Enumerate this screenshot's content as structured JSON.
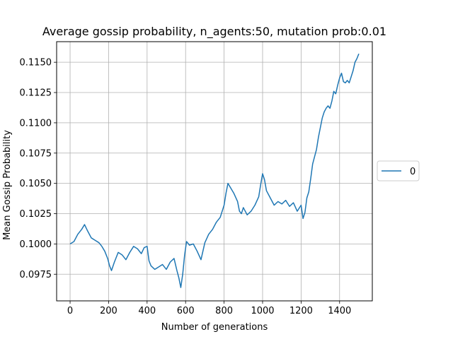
{
  "chart_data": {
    "type": "line",
    "title": "Average gossip probability, n_agents:50, mutation prob:0.01",
    "xlabel": "Number of generations",
    "ylabel": "Mean Gossip Probability",
    "xlim": [
      -70,
      1570
    ],
    "ylim": [
      0.0953,
      0.1167
    ],
    "xticks": [
      0,
      200,
      400,
      600,
      800,
      1000,
      1200,
      1400
    ],
    "xtick_labels": [
      "0",
      "200",
      "400",
      "600",
      "800",
      "1000",
      "1200",
      "1400"
    ],
    "yticks": [
      0.0975,
      0.1,
      0.1025,
      0.105,
      0.1075,
      0.11,
      0.1125,
      0.115
    ],
    "ytick_labels": [
      "0.0975",
      "0.1000",
      "0.1025",
      "0.1050",
      "0.1075",
      "0.1100",
      "0.1125",
      "0.1150"
    ],
    "grid": true,
    "legend_placement": "center-right, outside plot",
    "series": [
      {
        "name": "0",
        "color": "#1f77b4",
        "x": [
          0,
          20,
          40,
          60,
          75,
          90,
          110,
          130,
          150,
          165,
          180,
          195,
          205,
          215,
          230,
          250,
          270,
          290,
          310,
          330,
          350,
          370,
          385,
          400,
          410,
          420,
          440,
          460,
          480,
          500,
          520,
          540,
          555,
          565,
          575,
          585,
          595,
          605,
          620,
          640,
          660,
          680,
          700,
          720,
          740,
          760,
          780,
          800,
          810,
          820,
          835,
          850,
          870,
          880,
          890,
          900,
          920,
          940,
          960,
          980,
          990,
          1000,
          1010,
          1020,
          1040,
          1060,
          1080,
          1100,
          1120,
          1140,
          1160,
          1180,
          1200,
          1210,
          1220,
          1230,
          1240,
          1250,
          1260,
          1270,
          1280,
          1290,
          1300,
          1310,
          1320,
          1330,
          1340,
          1350,
          1360,
          1370,
          1380,
          1390,
          1400,
          1410,
          1420,
          1430,
          1440,
          1450,
          1460,
          1470,
          1480,
          1490,
          1500
        ],
        "y": [
          0.1,
          0.1002,
          0.1008,
          0.1012,
          0.1016,
          0.1011,
          0.1005,
          0.1003,
          0.1001,
          0.0998,
          0.0994,
          0.0988,
          0.0982,
          0.0978,
          0.0985,
          0.0993,
          0.0991,
          0.0987,
          0.0993,
          0.0998,
          0.0996,
          0.0992,
          0.0997,
          0.0998,
          0.0986,
          0.0982,
          0.0979,
          0.0981,
          0.0983,
          0.0979,
          0.0985,
          0.0988,
          0.0978,
          0.0972,
          0.0964,
          0.0975,
          0.0991,
          0.1002,
          0.0999,
          0.1,
          0.0994,
          0.0987,
          0.1001,
          0.1008,
          0.1012,
          0.1018,
          0.1022,
          0.1032,
          0.1042,
          0.105,
          0.1046,
          0.1042,
          0.1035,
          0.1027,
          0.1025,
          0.103,
          0.1024,
          0.1027,
          0.1032,
          0.1039,
          0.1049,
          0.1058,
          0.1053,
          0.1044,
          0.1038,
          0.1032,
          0.1035,
          0.1033,
          0.1036,
          0.1031,
          0.1034,
          0.1027,
          0.1032,
          0.1021,
          0.1026,
          0.1038,
          0.1043,
          0.1054,
          0.1066,
          0.1072,
          0.1078,
          0.1088,
          0.1096,
          0.1104,
          0.1109,
          0.1112,
          0.1114,
          0.1112,
          0.1118,
          0.1126,
          0.1124,
          0.1131,
          0.1137,
          0.1141,
          0.1134,
          0.1133,
          0.1135,
          0.1133,
          0.1138,
          0.1143,
          0.115,
          0.1153,
          0.1157
        ]
      }
    ]
  }
}
